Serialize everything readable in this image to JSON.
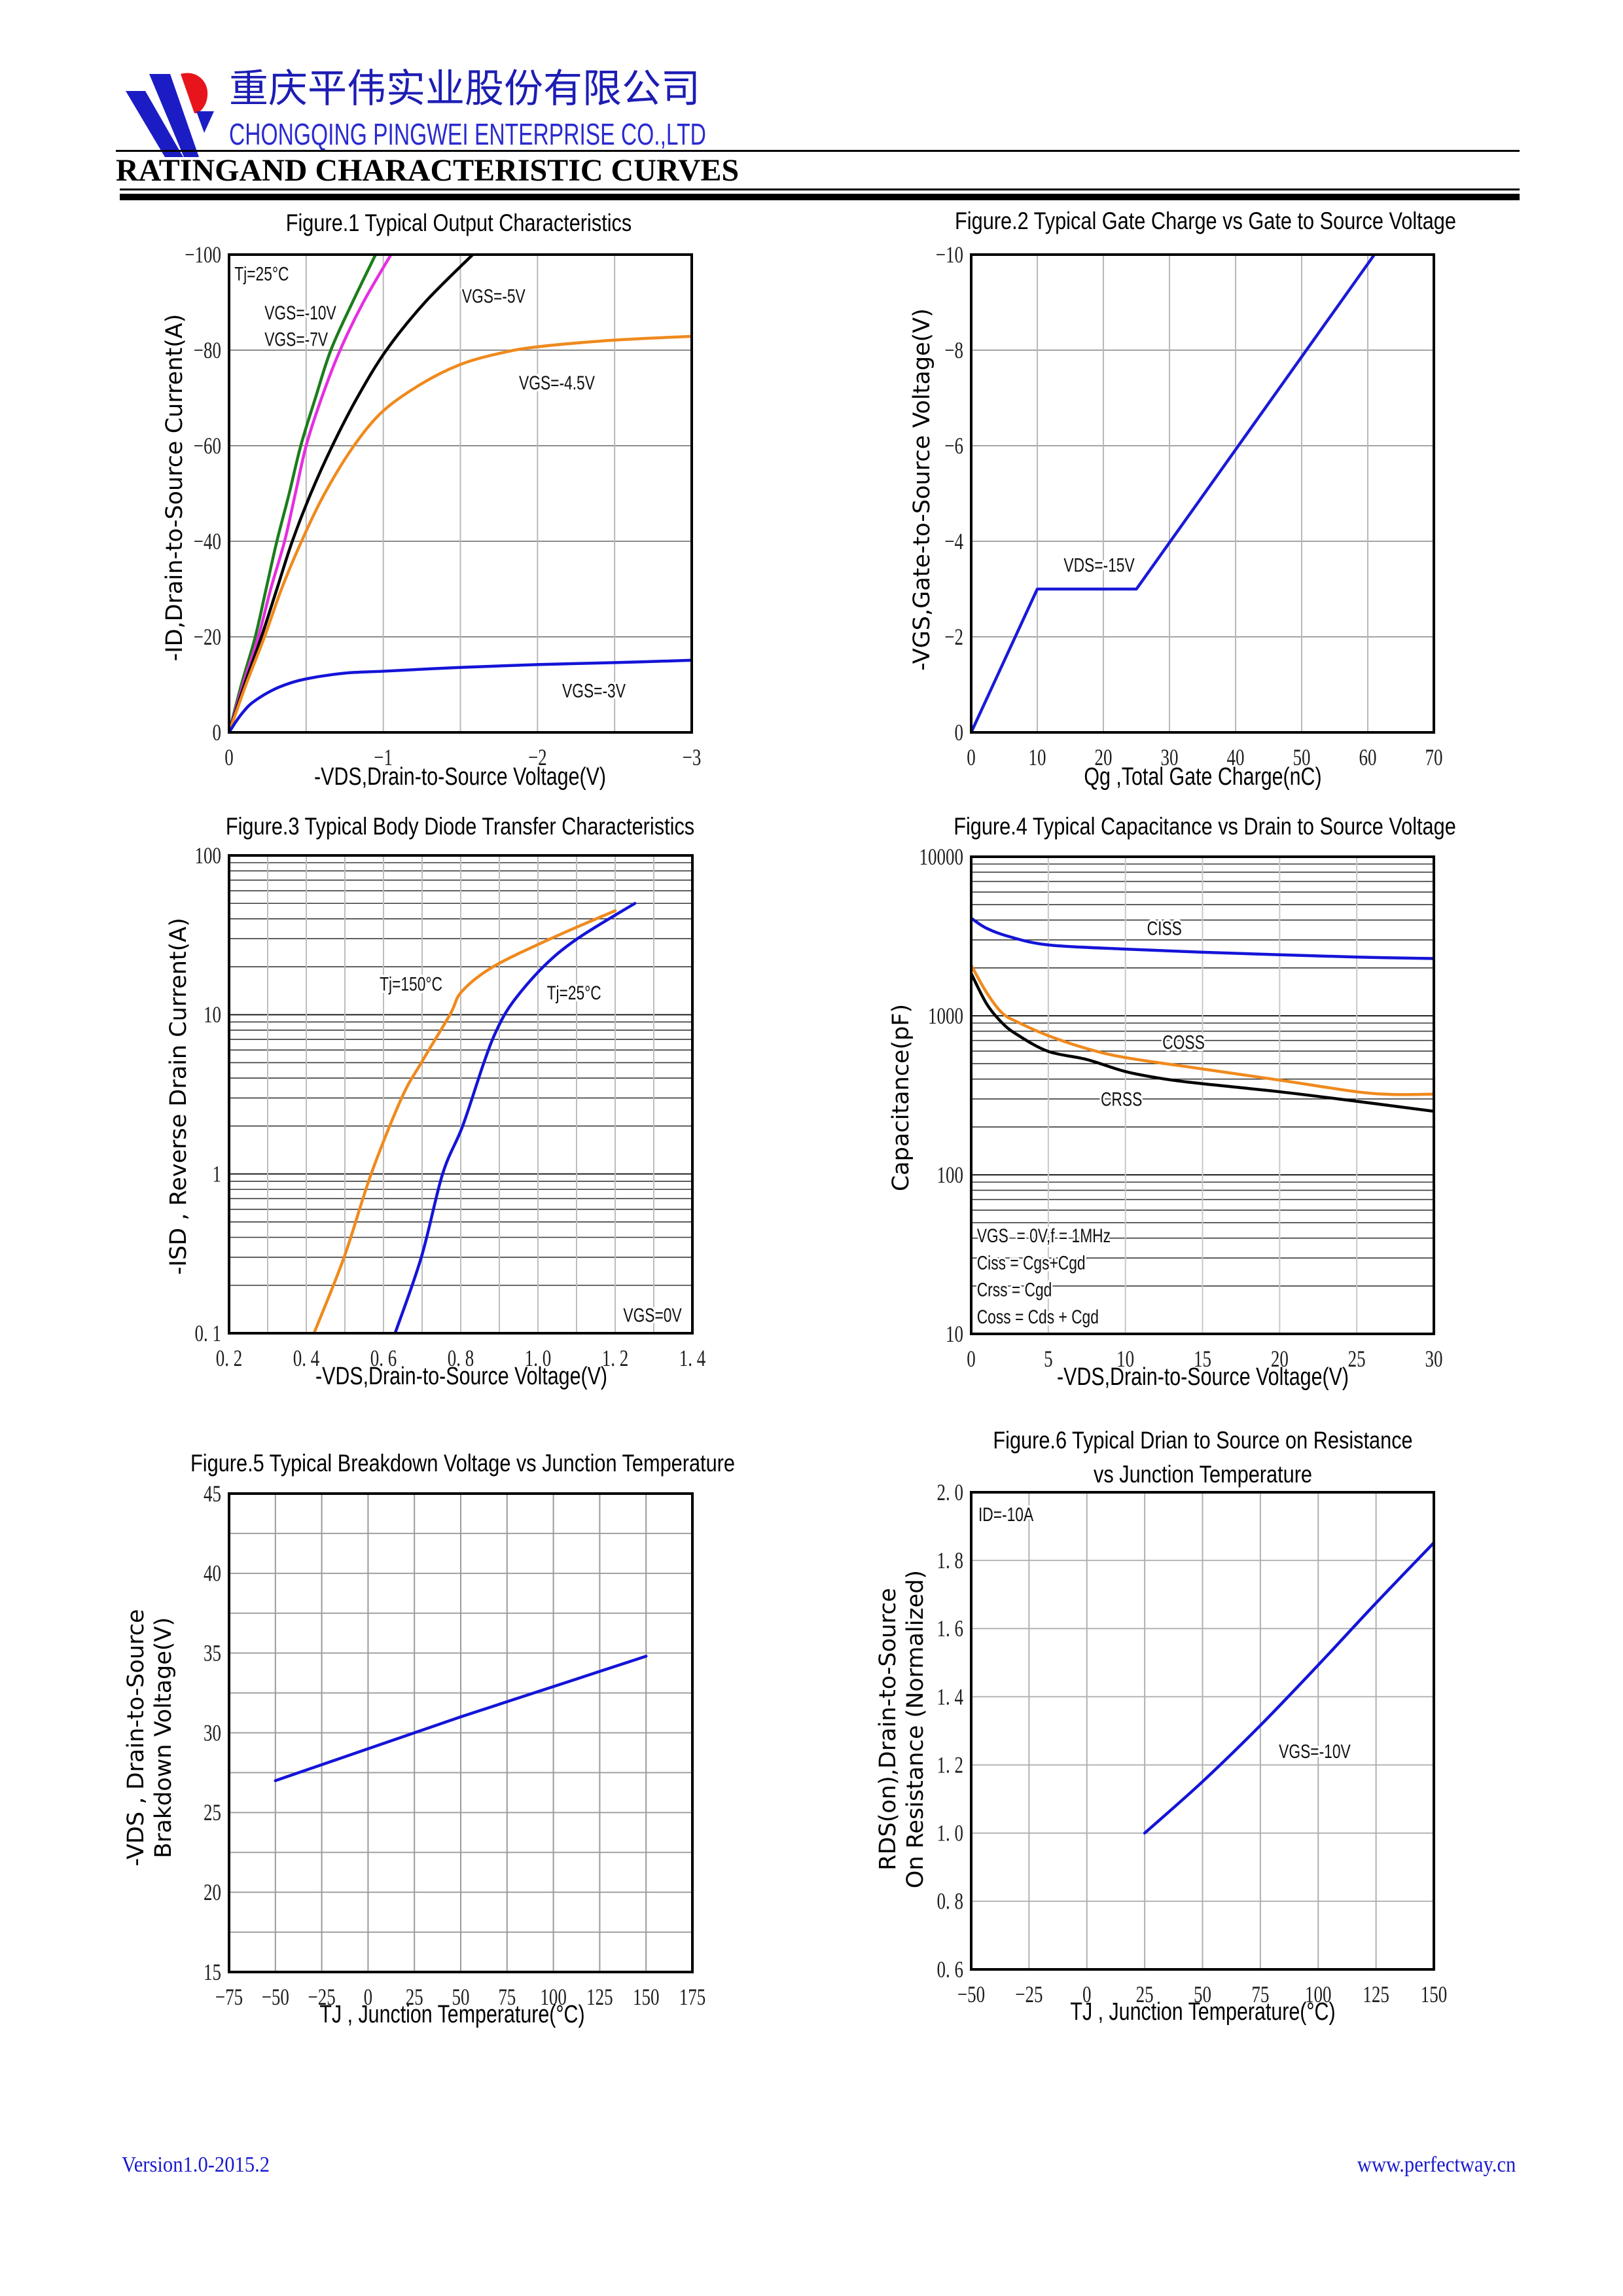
{
  "header": {
    "company_name_cn": "重庆平伟实业股份有限公司",
    "company_name_en": "CHONGQING PINGWEI ENTERPRISE CO.,LTD",
    "logo_icon": "company-logo",
    "brand_colors": {
      "blue": "#1c1cc4",
      "red": "#e8141c"
    }
  },
  "page_title": "RATINGAND CHARACTERISTIC CURVES",
  "footer": {
    "version": "Version1.0-2015.2",
    "website": "www.perfectway.cn",
    "color": "#1a1acc"
  },
  "chart_data": [
    {
      "type": "line",
      "title": "Figure.1 Typical Output Characteristics",
      "xlabel": "-VDS,Drain-to-Source Voltage(V)",
      "ylabel": "-ID,Drain-to-Source Current(A)",
      "xscale": "linear",
      "yscale": "linear",
      "xlim": [
        0,
        -3
      ],
      "ylim": [
        0,
        -100
      ],
      "x_ticks": [
        0,
        -1,
        -2,
        -3
      ],
      "x_tick_labels": [
        "0",
        "−1",
        "−2",
        "−3"
      ],
      "y_ticks": [
        0,
        -20,
        -40,
        -60,
        -80,
        -100
      ],
      "y_tick_labels": [
        "0",
        "−20",
        "−40",
        "−60",
        "−80",
        "−100"
      ],
      "grid": true,
      "x_grid": [
        -0.5,
        -1,
        -1.5,
        -2,
        -2.5
      ],
      "y_grid": [
        -20,
        -40,
        -60,
        -80
      ],
      "annotations": [
        "Tj=25°C"
      ],
      "series": [
        {
          "name": "VGS=-10V",
          "color": "#1b7d1b",
          "points": [
            [
              0,
              0
            ],
            [
              -0.08,
              -10
            ],
            [
              -0.17,
              -20
            ],
            [
              -0.24,
              -30
            ],
            [
              -0.31,
              -40
            ],
            [
              -0.39,
              -50
            ],
            [
              -0.465,
              -60
            ],
            [
              -0.56,
              -70
            ],
            [
              -0.66,
              -80
            ],
            [
              -0.8,
              -90
            ],
            [
              -0.95,
              -100
            ]
          ]
        },
        {
          "name": "VGS=-7V",
          "color": "#e62ee0",
          "points": [
            [
              0,
              0
            ],
            [
              -0.09,
              -10
            ],
            [
              -0.19,
              -20
            ],
            [
              -0.27,
              -30
            ],
            [
              -0.36,
              -40
            ],
            [
              -0.43,
              -50
            ],
            [
              -0.5,
              -60
            ],
            [
              -0.6,
              -70
            ],
            [
              -0.72,
              -80
            ],
            [
              -0.87,
              -90
            ],
            [
              -1.05,
              -100
            ]
          ]
        },
        {
          "name": "VGS=-5V",
          "color": "#000000",
          "points": [
            [
              0,
              0
            ],
            [
              -0.1,
              -10
            ],
            [
              -0.21,
              -20
            ],
            [
              -0.31,
              -30
            ],
            [
              -0.41,
              -40
            ],
            [
              -0.53,
              -50
            ],
            [
              -0.67,
              -60
            ],
            [
              -0.83,
              -70
            ],
            [
              -1.02,
              -80
            ],
            [
              -1.27,
              -90
            ],
            [
              -1.58,
              -100
            ]
          ]
        },
        {
          "name": "VGS=-4.5V",
          "color": "#ef8a1e",
          "points": [
            [
              0,
              0
            ],
            [
              -0.11,
              -10
            ],
            [
              -0.23,
              -20
            ],
            [
              -0.34,
              -30
            ],
            [
              -0.47,
              -40
            ],
            [
              -0.62,
              -50
            ],
            [
              -0.81,
              -60
            ],
            [
              -1.0,
              -67.3
            ],
            [
              -1.25,
              -73
            ],
            [
              -1.5,
              -77
            ],
            [
              -1.75,
              -79.3
            ],
            [
              -2.0,
              -80.7
            ],
            [
              -2.5,
              -82.1
            ],
            [
              -3.0,
              -82.9
            ]
          ]
        },
        {
          "name": "VGS=-3V",
          "color": "#1414d8",
          "points": [
            [
              0,
              0
            ],
            [
              -0.05,
              -2.5
            ],
            [
              -0.1,
              -4.6
            ],
            [
              -0.15,
              -6.2
            ],
            [
              -0.25,
              -8.3
            ],
            [
              -0.35,
              -9.8
            ],
            [
              -0.5,
              -11.2
            ],
            [
              -0.75,
              -12.4
            ],
            [
              -1.0,
              -12.8
            ],
            [
              -1.5,
              -13.6
            ],
            [
              -2.0,
              -14.2
            ],
            [
              -2.5,
              -14.6
            ],
            [
              -3.0,
              -15.1
            ]
          ]
        }
      ]
    },
    {
      "type": "line",
      "title": "Figure.2 Typical Gate Charge vs Gate to Source Voltage",
      "xlabel": "Qg ,Total Gate Charge(nC)",
      "ylabel": "-VGS,Gate-to-Source Voltage(V)",
      "xscale": "linear",
      "yscale": "linear",
      "xlim": [
        0,
        70
      ],
      "ylim": [
        0,
        -10
      ],
      "x_ticks": [
        0,
        10,
        20,
        30,
        40,
        50,
        60,
        70
      ],
      "x_tick_labels": [
        "0",
        "10",
        "20",
        "30",
        "40",
        "50",
        "60",
        "70"
      ],
      "y_ticks": [
        0,
        -2,
        -4,
        -6,
        -8,
        -10
      ],
      "y_tick_labels": [
        "0",
        "−2",
        "−4",
        "−6",
        "−8",
        "−10"
      ],
      "grid": true,
      "x_grid": [
        10,
        20,
        30,
        40,
        50,
        60
      ],
      "y_grid": [
        -2,
        -4,
        -6,
        -8
      ],
      "annotations": [],
      "series": [
        {
          "name": "VDS=-15V",
          "color": "#1a1ad8",
          "points": [
            [
              0,
              0
            ],
            [
              10,
              -3
            ],
            [
              25,
              -3
            ],
            [
              61,
              -10
            ]
          ]
        }
      ]
    },
    {
      "type": "line",
      "title": "Figure.3 Typical Body Diode Transfer Characteristics",
      "xlabel": "-VDS,Drain-to-Source Voltage(V)",
      "ylabel": "-ISD , Reverse Drain Current(A)",
      "xscale": "linear",
      "yscale": "log",
      "xlim": [
        0.2,
        1.4
      ],
      "ylim": [
        0.1,
        100
      ],
      "x_ticks": [
        0.2,
        0.4,
        0.6,
        0.8,
        1.0,
        1.2,
        1.4
      ],
      "x_tick_labels": [
        "0. 2",
        "0. 4",
        "0. 6",
        "0. 8",
        "1. 0",
        "1. 2",
        "1. 4"
      ],
      "y_ticks": [
        0.1,
        1,
        10,
        100
      ],
      "y_tick_labels": [
        "0. 1",
        "1",
        "10",
        "100"
      ],
      "grid": true,
      "x_grid": [
        0.3,
        0.4,
        0.5,
        0.6,
        0.7,
        0.8,
        0.9,
        1.0,
        1.1,
        1.2,
        1.3
      ],
      "y_grid": [
        1,
        10
      ],
      "annotations": [
        "VGS=0V"
      ],
      "series": [
        {
          "name": "Tj=150°C",
          "color": "#ef8a1e",
          "points": [
            [
              0.42,
              0.1
            ],
            [
              0.498,
              0.3
            ],
            [
              0.568,
              1
            ],
            [
              0.647,
              3
            ],
            [
              0.698,
              5
            ],
            [
              0.772,
              10
            ],
            [
              0.803,
              14
            ],
            [
              0.884,
              20
            ],
            [
              1.033,
              30
            ],
            [
              1.2,
              45
            ]
          ]
        },
        {
          "name": "Tj=25°C",
          "color": "#1414d8",
          "points": [
            [
              0.63,
              0.1
            ],
            [
              0.698,
              0.3
            ],
            [
              0.753,
              1
            ],
            [
              0.805,
              2
            ],
            [
              0.86,
              5
            ],
            [
              0.893,
              8
            ],
            [
              0.935,
              12
            ],
            [
              1.014,
              20
            ],
            [
              1.102,
              30
            ],
            [
              1.251,
              50
            ]
          ]
        }
      ]
    },
    {
      "type": "line",
      "title": "Figure.4 Typical Capacitance vs Drain to Source Voltage",
      "xlabel": "-VDS,Drain-to-Source Voltage(V)",
      "ylabel": "Capacitance(pF)",
      "xscale": "linear",
      "yscale": "log",
      "xlim": [
        0,
        30
      ],
      "ylim": [
        10,
        10000
      ],
      "x_ticks": [
        0,
        5,
        10,
        15,
        20,
        25,
        30
      ],
      "x_tick_labels": [
        "0",
        "5",
        "10",
        "15",
        "20",
        "25",
        "30"
      ],
      "y_ticks": [
        10,
        100,
        1000,
        10000
      ],
      "y_tick_labels": [
        "10",
        "100",
        "1000",
        "10000"
      ],
      "grid": true,
      "x_grid": [
        5,
        10,
        15,
        20,
        25
      ],
      "y_grid": [
        100,
        1000
      ],
      "annotations": [
        "VGS  = 0V,f = 1MHz",
        "Ciss = Cgs+Cgd",
        "Crss = Cgd",
        "Coss = Cds + Cgd"
      ],
      "series": [
        {
          "name": "CISS",
          "color": "#1414d8",
          "points": [
            [
              0,
              4110
            ],
            [
              1,
              3550
            ],
            [
              2.5,
              3140
            ],
            [
              5,
              2790
            ],
            [
              10,
              2625
            ],
            [
              15,
              2510
            ],
            [
              20,
              2420
            ],
            [
              25,
              2340
            ],
            [
              30,
              2290
            ]
          ]
        },
        {
          "name": "COSS",
          "color": "#ef8a1e",
          "points": [
            [
              0,
              2080
            ],
            [
              1,
              1400
            ],
            [
              2,
              1043
            ],
            [
              3,
              914
            ],
            [
              5,
              750
            ],
            [
              7.5,
              622
            ],
            [
              10,
              546
            ],
            [
              15,
              463
            ],
            [
              20,
              394
            ],
            [
              25,
              333
            ],
            [
              27.5,
              320
            ],
            [
              30,
              322
            ]
          ]
        },
        {
          "name": "CRSS",
          "color": "#000000",
          "points": [
            [
              0,
              1845
            ],
            [
              1,
              1190
            ],
            [
              2,
              904
            ],
            [
              3,
              759
            ],
            [
              5,
              597
            ],
            [
              7.5,
              531
            ],
            [
              10,
              446
            ],
            [
              12.5,
              401
            ],
            [
              15,
              374
            ],
            [
              20,
              333
            ],
            [
              25,
              290
            ],
            [
              30,
              251
            ]
          ]
        }
      ]
    },
    {
      "type": "line",
      "title": "Figure.5 Typical Breakdown Voltage vs Junction Temperature",
      "xlabel": "TJ , Junction Temperature(°C)",
      "ylabel": "-VDS , Drain-to-Source Brakdown Voltage(V)",
      "ylabel_lines": [
        "-VDS , Drain-to-Source",
        "Brakdown Voltage(V)"
      ],
      "xscale": "linear",
      "yscale": "linear",
      "xlim": [
        -75,
        175
      ],
      "ylim": [
        15,
        45
      ],
      "x_ticks": [
        -75,
        -50,
        -25,
        0,
        25,
        50,
        75,
        100,
        125,
        150,
        175
      ],
      "x_tick_labels": [
        "−75",
        "−50",
        "−25",
        "0",
        "25",
        "50",
        "75",
        "100",
        "125",
        "150",
        "175"
      ],
      "y_ticks": [
        15,
        20,
        25,
        30,
        35,
        40,
        45
      ],
      "y_tick_labels": [
        "15",
        "20",
        "25",
        "30",
        "35",
        "40",
        "45"
      ],
      "grid": true,
      "x_grid": [
        -50,
        -25,
        0,
        25,
        50,
        75,
        100,
        125,
        150
      ],
      "y_grid": [
        17.5,
        20,
        22.5,
        25,
        27.5,
        30,
        32.5,
        35,
        37.5,
        40,
        42.5
      ],
      "annotations": [],
      "series": [
        {
          "name": "",
          "color": "#1414d8",
          "points": [
            [
              -50,
              27.0
            ],
            [
              0,
              29.0
            ],
            [
              25,
              30.0
            ],
            [
              50,
              31.0
            ],
            [
              100,
              32.9
            ],
            [
              150,
              34.8
            ]
          ]
        }
      ]
    },
    {
      "type": "line",
      "title": "Figure.6 Typical Drian to Source on Resistance vs Junction Temperature",
      "title_lines": [
        "Figure.6 Typical Drian to Source on Resistance",
        "vs Junction Temperature"
      ],
      "xlabel": "TJ , Junction Temperature(°C)",
      "ylabel": "RDS(on),Drain-to-Source On Resistance (Normalized)",
      "ylabel_lines": [
        "RDS(on),Drain-to-Source",
        "On Resistance (Normalized)"
      ],
      "xscale": "linear",
      "yscale": "linear",
      "xlim": [
        -50,
        150
      ],
      "ylim": [
        0.6,
        2.0
      ],
      "x_ticks": [
        -50,
        -25,
        0,
        25,
        50,
        75,
        100,
        125,
        150
      ],
      "x_tick_labels": [
        "−50",
        "−25",
        "0",
        "25",
        "50",
        "75",
        "100",
        "125",
        "150"
      ],
      "y_ticks": [
        0.6,
        0.8,
        1.0,
        1.2,
        1.4,
        1.6,
        1.8,
        2.0
      ],
      "y_tick_labels": [
        "0. 6",
        "0. 8",
        "1. 0",
        "1. 2",
        "1. 4",
        "1. 6",
        "1. 8",
        "2. 0"
      ],
      "grid": true,
      "x_grid": [
        -25,
        0,
        25,
        50,
        75,
        100,
        125
      ],
      "y_grid": [
        0.8,
        1.0,
        1.2,
        1.4,
        1.6,
        1.8
      ],
      "annotations": [
        "ID=-10A"
      ],
      "series": [
        {
          "name": "VGS=-10V",
          "color": "#1414d8",
          "points": [
            [
              25,
              1.0
            ],
            [
              50,
              1.151
            ],
            [
              75,
              1.316
            ],
            [
              100,
              1.493
            ],
            [
              125,
              1.675
            ],
            [
              150,
              1.852
            ]
          ]
        }
      ]
    }
  ]
}
